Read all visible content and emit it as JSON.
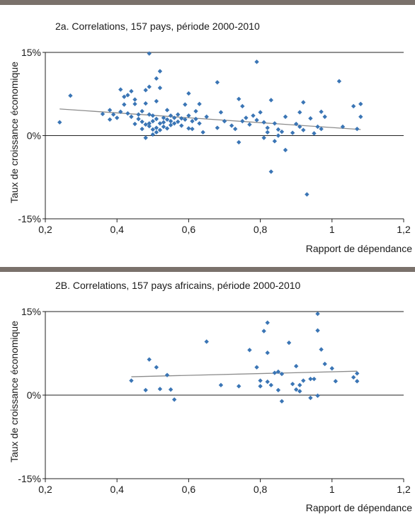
{
  "chart_data": [
    {
      "type": "scatter",
      "title": "2a. Correlations, 157 pays, période 2000-2010",
      "xlabel": "Rapport de dépendance",
      "ylabel": "Taux de croissance économique",
      "xlim": [
        0.2,
        1.2
      ],
      "ylim": [
        -15,
        15
      ],
      "x_ticks": [
        "0,2",
        "0,4",
        "0,6",
        "0,8",
        "1",
        "1,2"
      ],
      "y_ticks": [
        "15%",
        "0%",
        "-15%"
      ],
      "gridlines_y": [
        15,
        0
      ],
      "marker_color": "#3a75b5",
      "trendline_color": "#8c8c8c",
      "trendline": {
        "x": [
          0.24,
          1.08
        ],
        "y": [
          4.8,
          1.1
        ]
      },
      "points": [
        {
          "x": 0.24,
          "y": 2.4
        },
        {
          "x": 0.27,
          "y": 7.2
        },
        {
          "x": 0.36,
          "y": 3.9
        },
        {
          "x": 0.38,
          "y": 4.6
        },
        {
          "x": 0.38,
          "y": 2.9
        },
        {
          "x": 0.39,
          "y": 3.8
        },
        {
          "x": 0.4,
          "y": 3.2
        },
        {
          "x": 0.41,
          "y": 4.3
        },
        {
          "x": 0.41,
          "y": 8.3
        },
        {
          "x": 0.42,
          "y": 7.0
        },
        {
          "x": 0.42,
          "y": 5.6
        },
        {
          "x": 0.43,
          "y": 4.0
        },
        {
          "x": 0.43,
          "y": 7.3
        },
        {
          "x": 0.44,
          "y": 8.0
        },
        {
          "x": 0.44,
          "y": 3.4
        },
        {
          "x": 0.45,
          "y": 6.5
        },
        {
          "x": 0.45,
          "y": 5.7
        },
        {
          "x": 0.45,
          "y": 2.1
        },
        {
          "x": 0.46,
          "y": 3.8
        },
        {
          "x": 0.46,
          "y": 3.0
        },
        {
          "x": 0.47,
          "y": 4.4
        },
        {
          "x": 0.47,
          "y": 2.5
        },
        {
          "x": 0.47,
          "y": 1.2
        },
        {
          "x": 0.48,
          "y": 8.2
        },
        {
          "x": 0.48,
          "y": 5.8
        },
        {
          "x": 0.48,
          "y": 2.0
        },
        {
          "x": 0.48,
          "y": -0.4
        },
        {
          "x": 0.49,
          "y": 14.8
        },
        {
          "x": 0.49,
          "y": 8.8
        },
        {
          "x": 0.49,
          "y": 3.8
        },
        {
          "x": 0.49,
          "y": 2.2
        },
        {
          "x": 0.49,
          "y": 1.7
        },
        {
          "x": 0.5,
          "y": 3.6
        },
        {
          "x": 0.5,
          "y": 2.6
        },
        {
          "x": 0.5,
          "y": 1.1
        },
        {
          "x": 0.5,
          "y": 0.2
        },
        {
          "x": 0.51,
          "y": 10.3
        },
        {
          "x": 0.51,
          "y": 6.2
        },
        {
          "x": 0.51,
          "y": 3.0
        },
        {
          "x": 0.51,
          "y": 1.4
        },
        {
          "x": 0.51,
          "y": 0.6
        },
        {
          "x": 0.52,
          "y": 11.6
        },
        {
          "x": 0.52,
          "y": 8.6
        },
        {
          "x": 0.52,
          "y": 2.2
        },
        {
          "x": 0.52,
          "y": 1.0
        },
        {
          "x": 0.53,
          "y": 3.2
        },
        {
          "x": 0.53,
          "y": 2.4
        },
        {
          "x": 0.53,
          "y": 1.6
        },
        {
          "x": 0.54,
          "y": 4.6
        },
        {
          "x": 0.54,
          "y": 2.9
        },
        {
          "x": 0.54,
          "y": 1.3
        },
        {
          "x": 0.55,
          "y": 3.6
        },
        {
          "x": 0.55,
          "y": 2.6
        },
        {
          "x": 0.55,
          "y": 1.9
        },
        {
          "x": 0.56,
          "y": 3.2
        },
        {
          "x": 0.56,
          "y": 2.2
        },
        {
          "x": 0.57,
          "y": 3.8
        },
        {
          "x": 0.57,
          "y": 2.5
        },
        {
          "x": 0.58,
          "y": 3.1
        },
        {
          "x": 0.58,
          "y": 1.8
        },
        {
          "x": 0.59,
          "y": 5.6
        },
        {
          "x": 0.59,
          "y": 2.9
        },
        {
          "x": 0.6,
          "y": 7.6
        },
        {
          "x": 0.6,
          "y": 3.6
        },
        {
          "x": 0.6,
          "y": 1.3
        },
        {
          "x": 0.61,
          "y": 2.6
        },
        {
          "x": 0.61,
          "y": 1.2
        },
        {
          "x": 0.62,
          "y": 4.4
        },
        {
          "x": 0.62,
          "y": 3.0
        },
        {
          "x": 0.63,
          "y": 5.7
        },
        {
          "x": 0.63,
          "y": 2.2
        },
        {
          "x": 0.64,
          "y": 0.6
        },
        {
          "x": 0.65,
          "y": 3.4
        },
        {
          "x": 0.68,
          "y": 9.6
        },
        {
          "x": 0.68,
          "y": 1.4
        },
        {
          "x": 0.69,
          "y": 4.2
        },
        {
          "x": 0.7,
          "y": 2.6
        },
        {
          "x": 0.72,
          "y": 1.8
        },
        {
          "x": 0.73,
          "y": 1.2
        },
        {
          "x": 0.74,
          "y": 6.6
        },
        {
          "x": 0.74,
          "y": -1.2
        },
        {
          "x": 0.75,
          "y": 5.3
        },
        {
          "x": 0.75,
          "y": 2.6
        },
        {
          "x": 0.76,
          "y": 3.2
        },
        {
          "x": 0.77,
          "y": 2.0
        },
        {
          "x": 0.78,
          "y": 3.6
        },
        {
          "x": 0.79,
          "y": 13.3
        },
        {
          "x": 0.79,
          "y": 2.8
        },
        {
          "x": 0.8,
          "y": 4.2
        },
        {
          "x": 0.81,
          "y": 2.4
        },
        {
          "x": 0.81,
          "y": -0.4
        },
        {
          "x": 0.82,
          "y": 1.4
        },
        {
          "x": 0.82,
          "y": 0.6
        },
        {
          "x": 0.83,
          "y": 6.4
        },
        {
          "x": 0.83,
          "y": -6.5
        },
        {
          "x": 0.84,
          "y": 2.2
        },
        {
          "x": 0.84,
          "y": -1.0
        },
        {
          "x": 0.85,
          "y": 1.1
        },
        {
          "x": 0.85,
          "y": 0.0
        },
        {
          "x": 0.86,
          "y": 0.7
        },
        {
          "x": 0.87,
          "y": 3.4
        },
        {
          "x": 0.87,
          "y": -2.6
        },
        {
          "x": 0.89,
          "y": 0.5
        },
        {
          "x": 0.9,
          "y": 2.1
        },
        {
          "x": 0.91,
          "y": 1.6
        },
        {
          "x": 0.91,
          "y": 4.2
        },
        {
          "x": 0.92,
          "y": 6.0
        },
        {
          "x": 0.92,
          "y": 1.0
        },
        {
          "x": 0.93,
          "y": -10.6
        },
        {
          "x": 0.94,
          "y": 3.1
        },
        {
          "x": 0.95,
          "y": 0.4
        },
        {
          "x": 0.96,
          "y": 1.6
        },
        {
          "x": 0.97,
          "y": 4.3
        },
        {
          "x": 0.97,
          "y": 1.2
        },
        {
          "x": 0.98,
          "y": 3.4
        },
        {
          "x": 1.02,
          "y": 9.8
        },
        {
          "x": 1.03,
          "y": 1.6
        },
        {
          "x": 1.06,
          "y": 5.3
        },
        {
          "x": 1.07,
          "y": 1.2
        },
        {
          "x": 1.08,
          "y": 5.7
        },
        {
          "x": 1.08,
          "y": 3.4
        }
      ]
    },
    {
      "type": "scatter",
      "title": "2B. Correlations, 157 pays africains, période 2000-2010",
      "xlabel": "Rapport de dépendance",
      "ylabel": "Taux de croissance économique",
      "xlim": [
        0.2,
        1.2
      ],
      "ylim": [
        -15,
        15
      ],
      "x_ticks": [
        "0,2",
        "0,4",
        "0,6",
        "0,8",
        "1",
        "1,2"
      ],
      "y_ticks": [
        "15%",
        "0%",
        "-15%"
      ],
      "gridlines_y": [
        15,
        0
      ],
      "marker_color": "#3a75b5",
      "trendline_color": "#8c8c8c",
      "trendline": {
        "x": [
          0.44,
          1.07
        ],
        "y": [
          3.3,
          4.3
        ]
      },
      "points": [
        {
          "x": 0.44,
          "y": 2.6
        },
        {
          "x": 0.48,
          "y": 0.9
        },
        {
          "x": 0.49,
          "y": 6.4
        },
        {
          "x": 0.51,
          "y": 5.0
        },
        {
          "x": 0.52,
          "y": 1.1
        },
        {
          "x": 0.54,
          "y": 3.6
        },
        {
          "x": 0.55,
          "y": 1.0
        },
        {
          "x": 0.56,
          "y": -0.8
        },
        {
          "x": 0.65,
          "y": 9.6
        },
        {
          "x": 0.69,
          "y": 1.8
        },
        {
          "x": 0.74,
          "y": 1.6
        },
        {
          "x": 0.77,
          "y": 8.1
        },
        {
          "x": 0.79,
          "y": 5.0
        },
        {
          "x": 0.8,
          "y": 2.6
        },
        {
          "x": 0.8,
          "y": 1.6
        },
        {
          "x": 0.81,
          "y": 11.5
        },
        {
          "x": 0.82,
          "y": 13.0
        },
        {
          "x": 0.82,
          "y": 7.6
        },
        {
          "x": 0.82,
          "y": 2.4
        },
        {
          "x": 0.83,
          "y": 1.8
        },
        {
          "x": 0.84,
          "y": 4.0
        },
        {
          "x": 0.85,
          "y": 0.9
        },
        {
          "x": 0.85,
          "y": 4.2
        },
        {
          "x": 0.86,
          "y": 3.8
        },
        {
          "x": 0.86,
          "y": -1.1
        },
        {
          "x": 0.88,
          "y": 9.4
        },
        {
          "x": 0.89,
          "y": 2.0
        },
        {
          "x": 0.9,
          "y": 1.0
        },
        {
          "x": 0.9,
          "y": 5.2
        },
        {
          "x": 0.91,
          "y": 1.8
        },
        {
          "x": 0.91,
          "y": 0.7
        },
        {
          "x": 0.92,
          "y": 2.6
        },
        {
          "x": 0.94,
          "y": 2.9
        },
        {
          "x": 0.94,
          "y": -0.5
        },
        {
          "x": 0.95,
          "y": 2.9
        },
        {
          "x": 0.96,
          "y": 11.6
        },
        {
          "x": 0.96,
          "y": 14.6
        },
        {
          "x": 0.96,
          "y": -0.1
        },
        {
          "x": 0.97,
          "y": 8.2
        },
        {
          "x": 0.98,
          "y": 5.6
        },
        {
          "x": 1.0,
          "y": 4.8
        },
        {
          "x": 1.01,
          "y": 2.5
        },
        {
          "x": 1.06,
          "y": 3.2
        },
        {
          "x": 1.07,
          "y": 2.5
        },
        {
          "x": 1.07,
          "y": 3.9
        }
      ]
    }
  ]
}
